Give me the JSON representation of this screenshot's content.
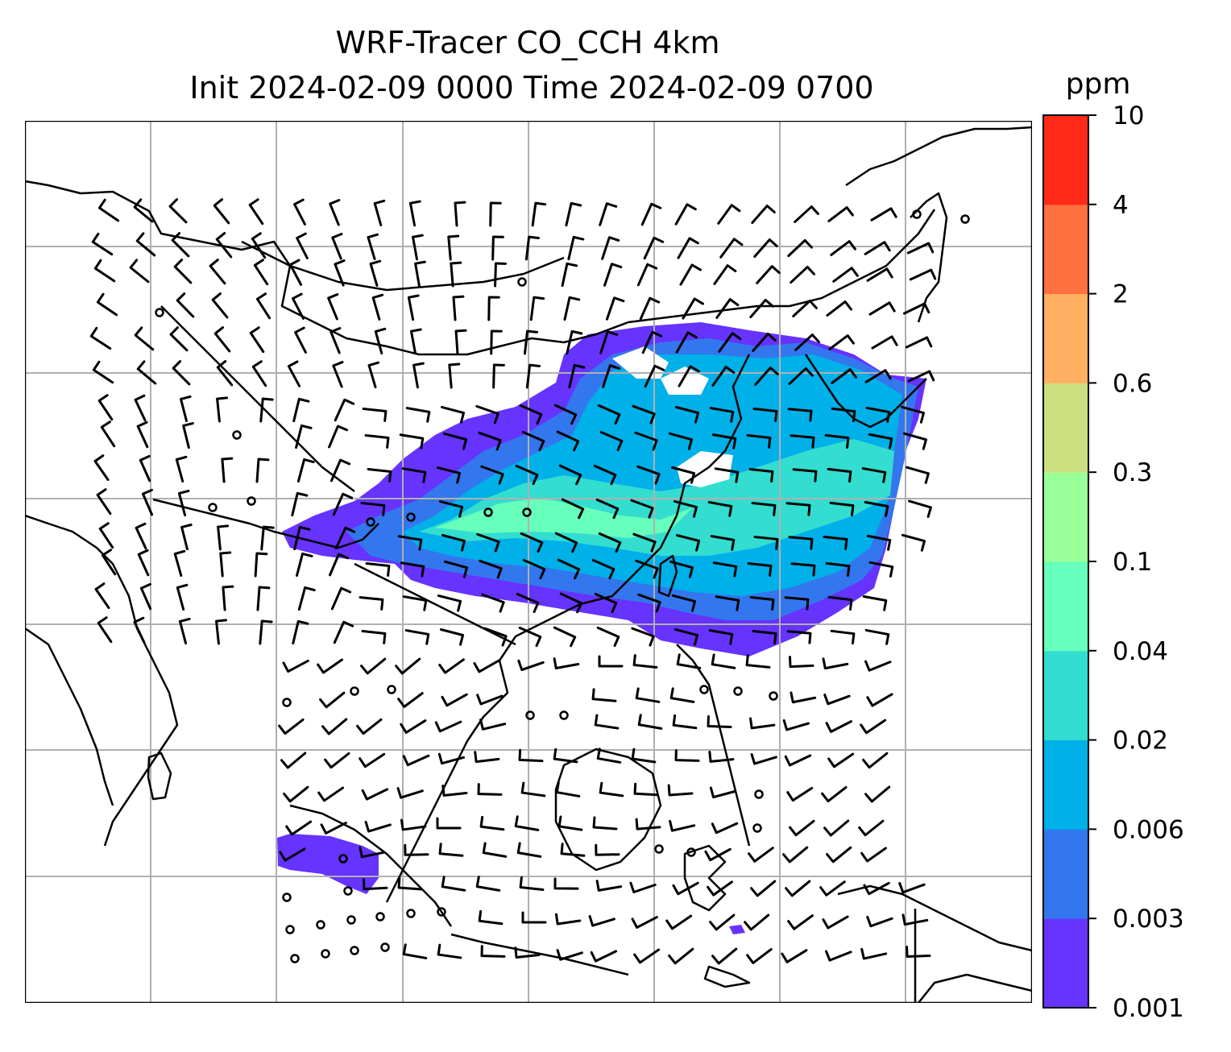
{
  "title": {
    "line1": "WRF-Tracer CO_CCH 4km",
    "line2": "Init 2024-02-09 0000 Time 2024-02-09 0700"
  },
  "colorbar": {
    "unit": "ppm",
    "ticks": [
      "0.001",
      "0.003",
      "0.006",
      "0.02",
      "0.04",
      "0.1",
      "0.3",
      "0.6",
      "2",
      "4",
      "10"
    ],
    "colors": [
      "#6633ff",
      "#3377ee",
      "#00b0e8",
      "#33ddd0",
      "#66ffbb",
      "#99ff99",
      "#cce080",
      "#ffb060",
      "#ff7040",
      "#ff2a18"
    ]
  },
  "map": {
    "gridlines": true,
    "coastlines": true,
    "wind_barbs": true
  }
}
